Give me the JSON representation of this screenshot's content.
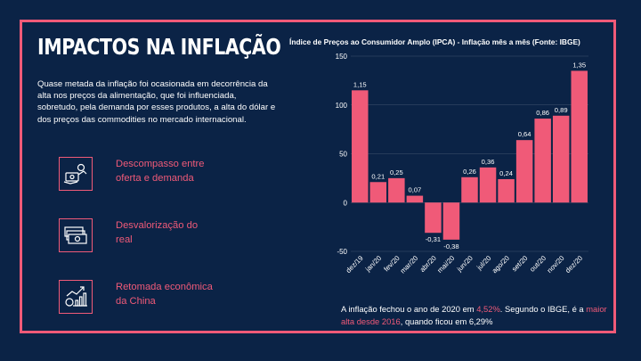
{
  "colors": {
    "background": "#0b2346",
    "accent": "#f05a78",
    "text": "#ffffff"
  },
  "title": "IMPACTOS NA INFLAÇÃO",
  "intro": "Quase metada da inflação foi ocasionada em decorrência da alta nos preços da alimentação, que foi influenciada, sobretudo, pela demanda por esses produtos, a alta do dólar e dos preços das commodities no mercado internacional.",
  "items": [
    {
      "label": "Descompasso entre oferta e demanda",
      "icon": "supply-demand-icon"
    },
    {
      "label": "Desvalorização do real",
      "icon": "money-icon"
    },
    {
      "label": "Retomada econômica da China",
      "icon": "growth-chart-icon"
    }
  ],
  "bottom_text": {
    "part1": "A inflação fechou o ano de 2020 em ",
    "hl1": "4,52%",
    "part2": ". Segundo o IBGE, é a ",
    "hl2": "maior alta desde 2016",
    "part3": ", quando ficou em 6,29%"
  },
  "chart_data": {
    "type": "bar",
    "title": "Índice de Preços ao Consumidor Amplo (IPCA) - Inflação mês a mês (Fonte: IBGE)",
    "categories": [
      "dez/19",
      "jan/20",
      "fev/20",
      "mar/20",
      "abr/20",
      "mai/20",
      "jun/20",
      "jul/20",
      "ago/20",
      "set/20",
      "out/20",
      "nov/20",
      "dez/20"
    ],
    "values": [
      1.15,
      0.21,
      0.25,
      0.07,
      -0.31,
      -0.38,
      0.26,
      0.36,
      0.24,
      0.64,
      0.86,
      0.89,
      1.35
    ],
    "labels": [
      "1,15",
      "0,21",
      "0,25",
      "0,07",
      "-0,31",
      "-0,38",
      "0,26",
      "0,36",
      "0,24",
      "0,64",
      "0,86",
      "0,89",
      "1,35"
    ],
    "yticks": [
      150,
      100,
      50,
      0,
      -50
    ],
    "ylim": [
      -50,
      150
    ],
    "bar_color": "#f05a78"
  }
}
